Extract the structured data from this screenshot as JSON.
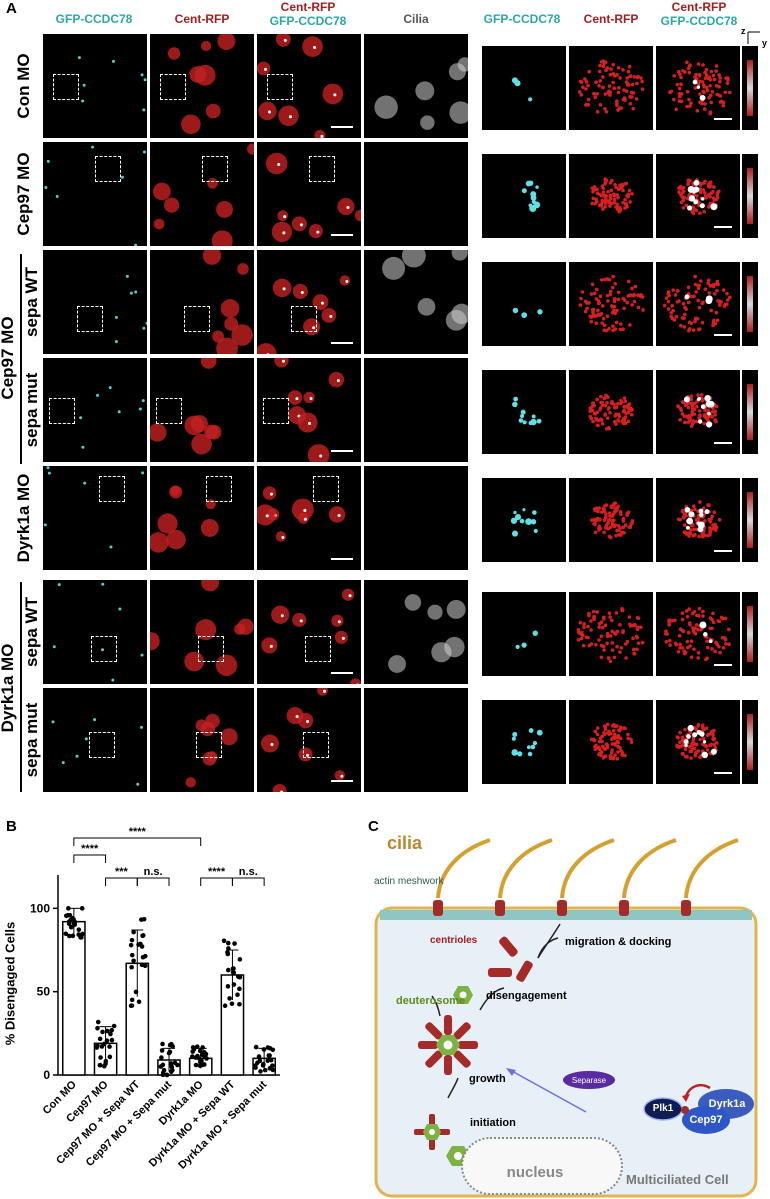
{
  "panels": {
    "a": "A",
    "b": "B",
    "c": "C"
  },
  "colors": {
    "teal": "#2aa7a7",
    "red": "#a61d1d",
    "cilia_brown": "#b8862b",
    "cell_outline": "#e0b44e",
    "cell_fill": "#e6f0f6"
  },
  "a": {
    "col_headers": {
      "gfp": "GFP-CCDC78",
      "cent": "Cent-RFP",
      "merge_top": "Cent-RFP",
      "merge_bottom": "GFP-CCDC78",
      "cilia": "Cilia",
      "zoom_gfp": "GFP-CCDC78",
      "zoom_cent": "Cent-RFP",
      "zoom_merge_top": "Cent-RFP",
      "zoom_merge_bottom": "GFP-CCDC78",
      "axis_z": "z",
      "axis_y": "y"
    },
    "row_labels": [
      "Con MO",
      "Cep97 MO",
      "sepa WT",
      "sepa mut",
      "Dyrk1a MO",
      "sepa WT",
      "sepa mut"
    ],
    "group_labels": {
      "cep97": "Cep97 MO",
      "dyrk1a": "Dyrk1a MO"
    }
  },
  "b": {
    "ylabel": "% Disengaged Cells",
    "yticks": [
      "0",
      "50",
      "100"
    ],
    "sig": [
      "****",
      "****",
      "***",
      "n.s.",
      "****",
      "n.s."
    ]
  },
  "chart_data": {
    "type": "bar",
    "categories": [
      "Con MO",
      "Cep97 MO",
      "Cep97 MO + Sepa WT",
      "Cep97 MO + Sepa mut",
      "Dyrk1a MO",
      "Dyrk1a MO + Sepa WT",
      "Dyrk1a MO + Sepa mut"
    ],
    "values": [
      92,
      19,
      67,
      9,
      10,
      60,
      10
    ],
    "error": [
      8,
      10,
      20,
      7,
      6,
      15,
      6
    ],
    "ylabel": "% Disengaged Cells",
    "ylim": [
      0,
      120
    ],
    "yticks": [
      0,
      50,
      100
    ]
  },
  "c": {
    "cilia": "cilia",
    "actin": "actin meshwork",
    "centrioles": "centrioles",
    "migration": "migration & docking",
    "deuterosome": "deuterosome",
    "disengagement": "disengagement",
    "growth": "growth",
    "initiation": "initiation",
    "separase": "Separase",
    "plk1": "Plk1",
    "dyrk1a": "Dyrk1a",
    "cep97": "Cep97",
    "nucleus": "nucleus",
    "cell": "Multiciliated Cell"
  }
}
